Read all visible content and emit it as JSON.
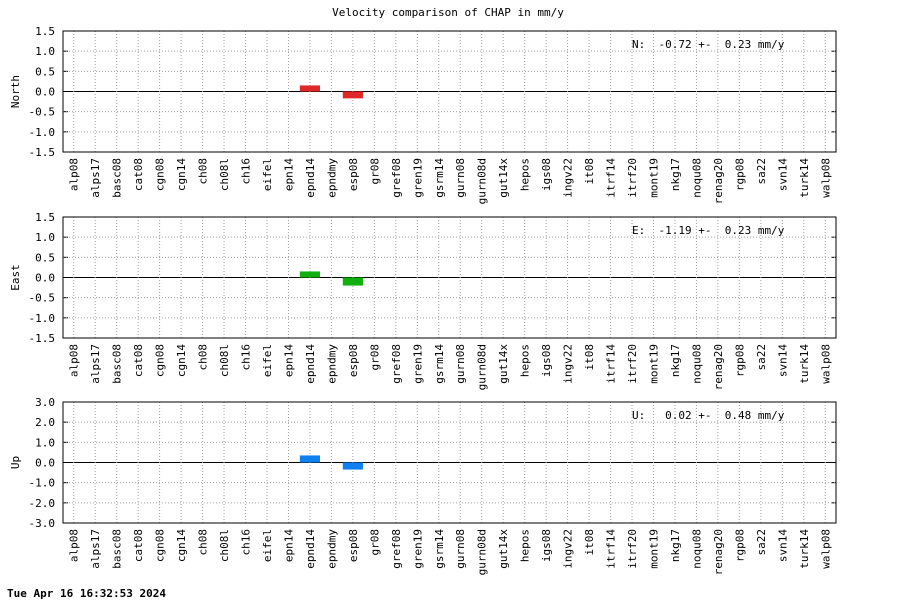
{
  "title": "Velocity comparison of CHAP in mm/y",
  "footer": "Tue Apr 16 16:32:53 2024",
  "chart_data": [
    {
      "type": "bar",
      "ylabel": "North",
      "annotation": "N:  -0.72 +-  0.23 mm/y",
      "color": "#e02828",
      "grid": true,
      "categories": [
        "alp08",
        "alps17",
        "basc08",
        "cat08",
        "cgn08",
        "cgn14",
        "ch08",
        "ch08l",
        "ch16",
        "eifel",
        "epn14",
        "epnd14",
        "epndmy",
        "esp08",
        "gr08",
        "gref08",
        "gren19",
        "gsrm14",
        "gurn08",
        "gurn08d",
        "gut14x",
        "hepos",
        "igs08",
        "ingv22",
        "it08",
        "itrf14",
        "itrf20",
        "mont19",
        "nkg17",
        "noqu08",
        "renag20",
        "rgp08",
        "sa22",
        "svn14",
        "turk14",
        "walp08"
      ],
      "values": [
        null,
        null,
        null,
        null,
        null,
        null,
        null,
        null,
        null,
        null,
        null,
        0.15,
        null,
        -0.17,
        null,
        null,
        null,
        null,
        null,
        null,
        null,
        null,
        null,
        null,
        null,
        null,
        null,
        null,
        null,
        null,
        null,
        null,
        null,
        null,
        null,
        null
      ],
      "ylim": [
        -1.5,
        1.5
      ],
      "yticks": [
        {
          "value": 1.5,
          "label": "1.5"
        },
        {
          "value": 1,
          "label": "1.0"
        },
        {
          "value": 0.5,
          "label": "0.5"
        },
        {
          "value": 0,
          "label": "0.0"
        },
        {
          "value": -0.5,
          "label": "-0.5"
        },
        {
          "value": -1,
          "label": "-1.0"
        },
        {
          "value": -1.5,
          "label": "-1.5"
        }
      ]
    },
    {
      "type": "bar",
      "ylabel": "East",
      "annotation": "E:  -1.19 +-  0.23 mm/y",
      "color": "#10b010",
      "grid": true,
      "categories": [
        "alp08",
        "alps17",
        "basc08",
        "cat08",
        "cgn08",
        "cgn14",
        "ch08",
        "ch08l",
        "ch16",
        "eifel",
        "epn14",
        "epnd14",
        "epndmy",
        "esp08",
        "gr08",
        "gref08",
        "gren19",
        "gsrm14",
        "gurn08",
        "gurn08d",
        "gut14x",
        "hepos",
        "igs08",
        "ingv22",
        "it08",
        "itrf14",
        "itrf20",
        "mont19",
        "nkg17",
        "noqu08",
        "renag20",
        "rgp08",
        "sa22",
        "svn14",
        "turk14",
        "walp08"
      ],
      "values": [
        null,
        null,
        null,
        null,
        null,
        null,
        null,
        null,
        null,
        null,
        null,
        0.15,
        null,
        -0.2,
        null,
        null,
        null,
        null,
        null,
        null,
        null,
        null,
        null,
        null,
        null,
        null,
        null,
        null,
        null,
        null,
        null,
        null,
        null,
        null,
        null,
        null
      ],
      "ylim": [
        -1.5,
        1.5
      ],
      "yticks": [
        {
          "value": 1.5,
          "label": "1.5"
        },
        {
          "value": 1,
          "label": "1.0"
        },
        {
          "value": 0.5,
          "label": "0.5"
        },
        {
          "value": 0,
          "label": "0.0"
        },
        {
          "value": -0.5,
          "label": "-0.5"
        },
        {
          "value": -1,
          "label": "-1.0"
        },
        {
          "value": -1.5,
          "label": "-1.5"
        }
      ]
    },
    {
      "type": "bar",
      "ylabel": "Up",
      "annotation": "U:   0.02 +-  0.48 mm/y",
      "color": "#1080f0",
      "grid": true,
      "categories": [
        "alp08",
        "alps17",
        "basc08",
        "cat08",
        "cgn08",
        "cgn14",
        "ch08",
        "ch08l",
        "ch16",
        "eifel",
        "epn14",
        "epnd14",
        "epndmy",
        "esp08",
        "gr08",
        "gref08",
        "gren19",
        "gsrm14",
        "gurn08",
        "gurn08d",
        "gut14x",
        "hepos",
        "igs08",
        "ingv22",
        "it08",
        "itrf14",
        "itrf20",
        "mont19",
        "nkg17",
        "noqu08",
        "renag20",
        "rgp08",
        "sa22",
        "svn14",
        "turk14",
        "walp08"
      ],
      "values": [
        null,
        null,
        null,
        null,
        null,
        null,
        null,
        null,
        null,
        null,
        null,
        0.35,
        null,
        -0.35,
        null,
        null,
        null,
        null,
        null,
        null,
        null,
        null,
        null,
        null,
        null,
        null,
        null,
        null,
        null,
        null,
        null,
        null,
        null,
        null,
        null,
        null
      ],
      "ylim": [
        -3,
        3
      ],
      "yticks": [
        {
          "value": 3,
          "label": "3.0"
        },
        {
          "value": 2,
          "label": "2.0"
        },
        {
          "value": 1,
          "label": "1.0"
        },
        {
          "value": 0,
          "label": "0.0"
        },
        {
          "value": -1,
          "label": "-1.0"
        },
        {
          "value": -2,
          "label": "-2.0"
        },
        {
          "value": -3,
          "label": "-3.0"
        }
      ]
    }
  ]
}
